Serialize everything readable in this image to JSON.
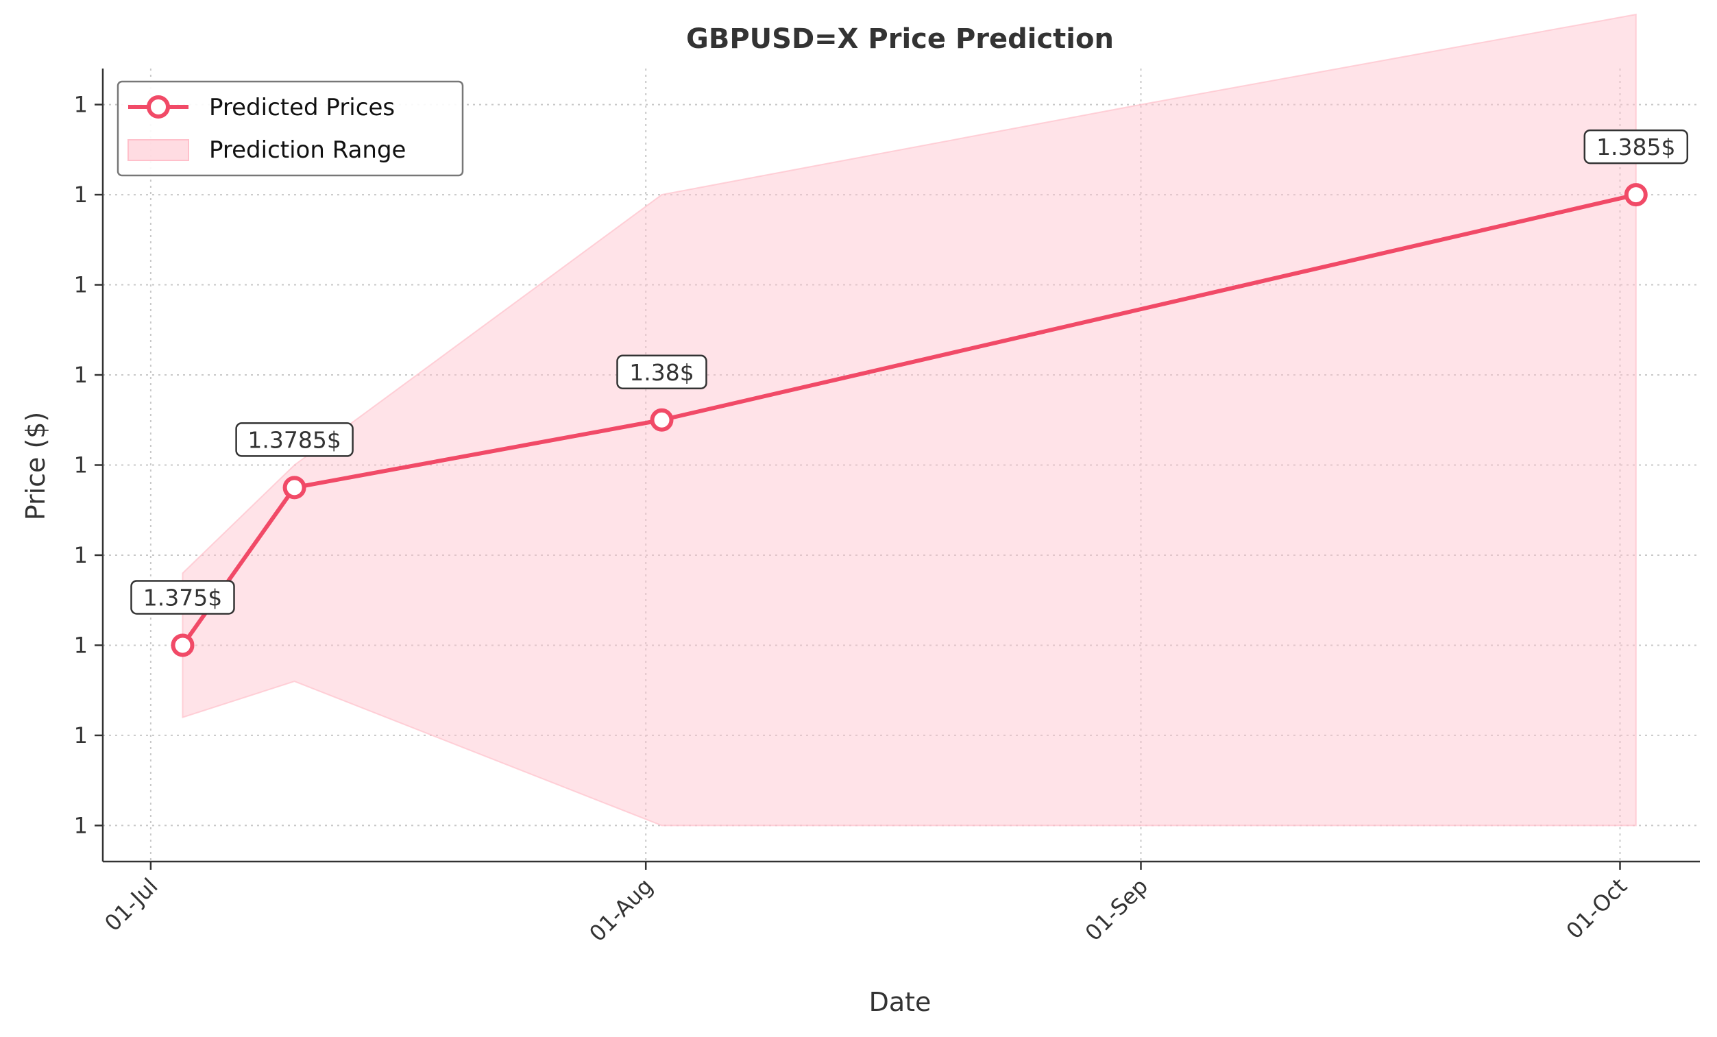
{
  "chart_data": {
    "type": "line",
    "title": "GBPUSD=X Price Prediction",
    "xlabel": "Date",
    "ylabel": "Price ($)",
    "x_ticks": [
      "2024-07-01",
      "2024-08-01",
      "2024-09-01",
      "2024-10-01"
    ],
    "x_tick_labels": [
      "01-Jul",
      "01-Aug",
      "01-Sep",
      "01-Oct"
    ],
    "y_ticks": [
      1.371,
      1.373,
      1.375,
      1.377,
      1.379,
      1.381,
      1.383,
      1.385,
      1.387
    ],
    "y_tick_labels": [
      "1",
      "1",
      "1",
      "1",
      "1",
      "1",
      "1",
      "1",
      "1"
    ],
    "xlim": [
      "2024-06-28",
      "2024-10-06"
    ],
    "ylim": [
      1.3702,
      1.3878
    ],
    "grid": true,
    "legend_position": "top-left",
    "series": [
      {
        "name": "Predicted Prices",
        "x": [
          "2024-07-03",
          "2024-07-10",
          "2024-08-02",
          "2024-10-02"
        ],
        "y": [
          1.375,
          1.3785,
          1.38,
          1.385
        ],
        "labels": [
          "1.375$",
          "1.3785$",
          "1.38$",
          "1.385$"
        ],
        "color": "#f14a67"
      }
    ],
    "range": {
      "name": "Prediction Range",
      "x": [
        "2024-07-03",
        "2024-07-10",
        "2024-08-02",
        "2024-09-01",
        "2024-10-02"
      ],
      "lower": [
        1.3734,
        1.3742,
        1.371,
        1.371,
        1.371
      ],
      "upper": [
        1.3766,
        1.379,
        1.385,
        1.387,
        1.389
      ],
      "color": "#ffc0cb"
    }
  }
}
